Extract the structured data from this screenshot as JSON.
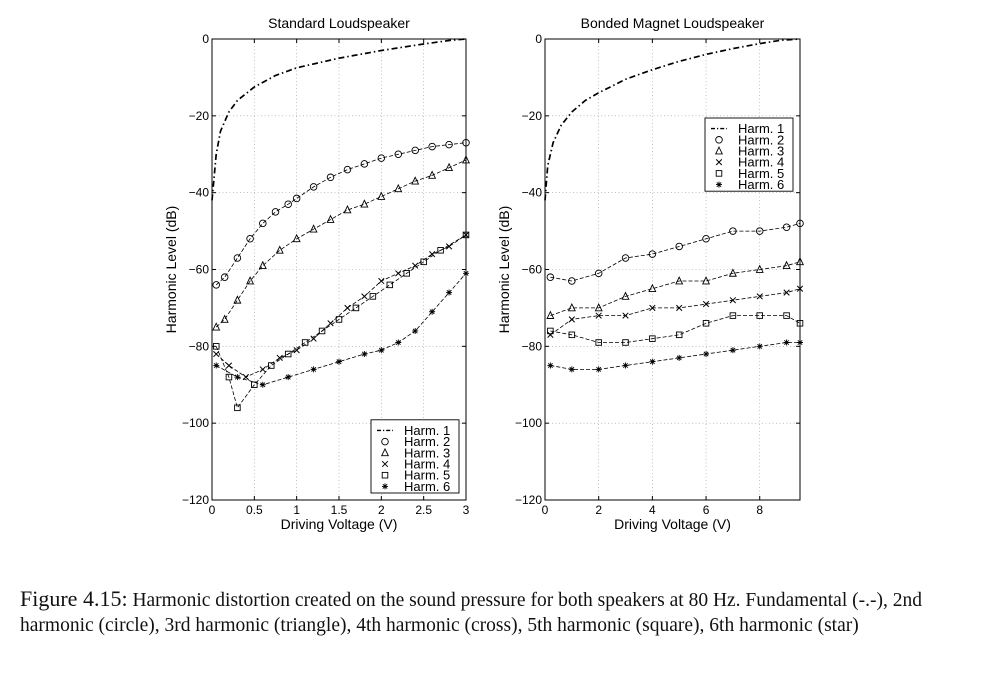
{
  "chart_data": [
    {
      "type": "line",
      "title": "Standard Loudspeaker",
      "xlabel": "Driving Voltage (V)",
      "ylabel": "Harmonic Level (dB)",
      "xlim": [
        0,
        3
      ],
      "ylim": [
        -120,
        0
      ],
      "xticks": [
        0,
        0.5,
        1,
        1.5,
        2,
        2.5,
        3
      ],
      "xtick_labels": [
        "0",
        "0.5",
        "1",
        "1.5",
        "2",
        "2.5",
        "3"
      ],
      "yticks": [
        0,
        -20,
        -40,
        -60,
        -80,
        -100,
        -120
      ],
      "ytick_labels": [
        "0",
        "−20",
        "−40",
        "−60",
        "−80",
        "−100",
        "−120"
      ],
      "grid": true,
      "legend_position": "bottom-right",
      "series": [
        {
          "name": "Harm. 1",
          "marker": "dashdot",
          "x": [
            0,
            0.05,
            0.1,
            0.2,
            0.3,
            0.5,
            0.75,
            1.0,
            1.5,
            2.0,
            2.5,
            2.8,
            3.0
          ],
          "y": [
            -42,
            -30,
            -24,
            -19,
            -16,
            -12.5,
            -9.5,
            -7.5,
            -5,
            -3,
            -1.3,
            -0.4,
            0
          ]
        },
        {
          "name": "Harm. 2",
          "marker": "circle",
          "x": [
            0.05,
            0.15,
            0.3,
            0.45,
            0.6,
            0.75,
            0.9,
            1.0,
            1.2,
            1.4,
            1.6,
            1.8,
            2.0,
            2.2,
            2.4,
            2.6,
            2.8,
            3.0
          ],
          "y": [
            -64,
            -62,
            -57,
            -52,
            -48,
            -45,
            -43,
            -41.5,
            -38.5,
            -36,
            -34,
            -32.5,
            -31,
            -30,
            -29,
            -28,
            -27.5,
            -27
          ]
        },
        {
          "name": "Harm. 3",
          "marker": "triangle",
          "x": [
            0.05,
            0.15,
            0.3,
            0.45,
            0.6,
            0.8,
            1.0,
            1.2,
            1.4,
            1.6,
            1.8,
            2.0,
            2.2,
            2.4,
            2.6,
            2.8,
            3.0
          ],
          "y": [
            -75,
            -73,
            -68,
            -63,
            -59,
            -55,
            -52,
            -49.5,
            -47,
            -44.5,
            -43,
            -41,
            -39,
            -37,
            -35.5,
            -33.5,
            -31.5
          ]
        },
        {
          "name": "Harm. 4",
          "marker": "cross",
          "x": [
            0.05,
            0.2,
            0.4,
            0.6,
            0.8,
            1.0,
            1.2,
            1.4,
            1.6,
            1.8,
            2.0,
            2.2,
            2.4,
            2.6,
            2.8,
            3.0
          ],
          "y": [
            -82,
            -85,
            -88,
            -86,
            -83,
            -81,
            -78,
            -74,
            -70,
            -67,
            -63,
            -61,
            -59,
            -56,
            -54,
            -51
          ]
        },
        {
          "name": "Harm. 5",
          "marker": "square",
          "x": [
            0.05,
            0.2,
            0.3,
            0.5,
            0.7,
            0.9,
            1.1,
            1.3,
            1.5,
            1.7,
            1.9,
            2.1,
            2.3,
            2.5,
            2.7,
            3.0
          ],
          "y": [
            -80,
            -88,
            -96,
            -90,
            -85,
            -82,
            -79,
            -76,
            -73,
            -70,
            -67,
            -64,
            -61,
            -58,
            -55,
            -51
          ]
        },
        {
          "name": "Harm. 6",
          "marker": "star",
          "x": [
            0.05,
            0.3,
            0.6,
            0.9,
            1.2,
            1.5,
            1.8,
            2.0,
            2.2,
            2.4,
            2.6,
            2.8,
            3.0
          ],
          "y": [
            -85,
            -88,
            -90,
            -88,
            -86,
            -84,
            -82,
            -81,
            -79,
            -76,
            -71,
            -66,
            -61
          ]
        }
      ]
    },
    {
      "type": "line",
      "title": "Bonded Magnet Loudspeaker",
      "xlabel": "Driving Voltage (V)",
      "ylabel": "Harmonic Level (dB)",
      "xlim": [
        0,
        9.5
      ],
      "ylim": [
        -120,
        0
      ],
      "xticks": [
        0,
        2,
        4,
        6,
        8
      ],
      "xtick_labels": [
        "0",
        "2",
        "4",
        "6",
        "8"
      ],
      "yticks": [
        0,
        -20,
        -40,
        -60,
        -80,
        -100,
        -120
      ],
      "ytick_labels": [
        "0",
        "−20",
        "−40",
        "−60",
        "−80",
        "−100",
        "−120"
      ],
      "grid": true,
      "legend_position": "top-right",
      "series": [
        {
          "name": "Harm. 1",
          "marker": "dashdot",
          "x": [
            0,
            0.1,
            0.3,
            0.6,
            1,
            1.5,
            2,
            3,
            4,
            5,
            6,
            7,
            8,
            8.8,
            9.5
          ],
          "y": [
            -42,
            -33,
            -27,
            -22.5,
            -19,
            -16,
            -14,
            -10.5,
            -8,
            -5.8,
            -4,
            -2.5,
            -1.2,
            -0.3,
            0
          ]
        },
        {
          "name": "Harm. 2",
          "marker": "circle",
          "x": [
            0.2,
            1,
            2,
            3,
            4,
            5,
            6,
            7,
            8,
            9,
            9.5
          ],
          "y": [
            -62,
            -63,
            -61,
            -57,
            -56,
            -54,
            -52,
            -50,
            -50,
            -49,
            -48
          ]
        },
        {
          "name": "Harm. 3",
          "marker": "triangle",
          "x": [
            0.2,
            1,
            2,
            3,
            4,
            5,
            6,
            7,
            8,
            9,
            9.5
          ],
          "y": [
            -72,
            -70,
            -70,
            -67,
            -65,
            -63,
            -63,
            -61,
            -60,
            -59,
            -58
          ]
        },
        {
          "name": "Harm. 4",
          "marker": "cross",
          "x": [
            0.2,
            1,
            2,
            3,
            4,
            5,
            6,
            7,
            8,
            9,
            9.5
          ],
          "y": [
            -77,
            -73,
            -72,
            -72,
            -70,
            -70,
            -69,
            -68,
            -67,
            -66,
            -65
          ]
        },
        {
          "name": "Harm. 5",
          "marker": "square",
          "x": [
            0.2,
            1,
            2,
            3,
            4,
            5,
            6,
            7,
            8,
            9,
            9.5
          ],
          "y": [
            -76,
            -77,
            -79,
            -79,
            -78,
            -77,
            -74,
            -72,
            -72,
            -72,
            -74
          ]
        },
        {
          "name": "Harm. 6",
          "marker": "star",
          "x": [
            0.2,
            1,
            2,
            3,
            4,
            5,
            6,
            7,
            8,
            9,
            9.5
          ],
          "y": [
            -85,
            -86,
            -86,
            -85,
            -84,
            -83,
            -82,
            -81,
            -80,
            -79,
            -79
          ]
        }
      ]
    }
  ],
  "caption": {
    "label": "Figure 4.15:",
    "text": "Harmonic distortion created on the sound pressure for both speakers at 80 Hz. Fundamental (-.-), 2nd harmonic (circle), 3rd harmonic (triangle), 4th harmonic (cross), 5th harmonic (square), 6th harmonic (star)"
  }
}
